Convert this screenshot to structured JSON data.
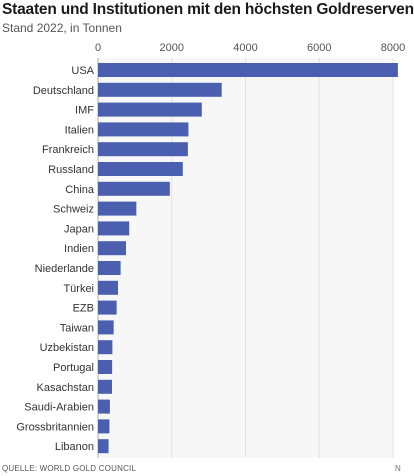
{
  "header": {
    "title": "Staaten und Institutionen mit den höchsten Goldreserven",
    "subtitle": "Stand 2022, in Tonnen"
  },
  "footer": {
    "source": "QUELLE: WORLD GOLD COUNCIL",
    "corner_mark": "N"
  },
  "colors": {
    "bar": "#4a5fb0",
    "grid": "#e3e3e3",
    "baseline": "#b0b0b0",
    "plot_bg": "#f7f7f7"
  },
  "chart_data": {
    "type": "bar",
    "orientation": "horizontal",
    "title": "Staaten und Institutionen mit den höchsten Goldreserven",
    "subtitle": "Stand 2022, in Tonnen",
    "xlim": [
      0,
      8000
    ],
    "xticks": [
      0,
      2000,
      4000,
      6000,
      8000
    ],
    "grid": true,
    "categories": [
      "USA",
      "Deutschland",
      "IMF",
      "Italien",
      "Frankreich",
      "Russland",
      "China",
      "Schweiz",
      "Japan",
      "Indien",
      "Niederlande",
      "Türkei",
      "EZB",
      "Taiwan",
      "Uzbekistan",
      "Portugal",
      "Kasachstan",
      "Saudi-Arabien",
      "Grossbritannien",
      "Libanon"
    ],
    "values": [
      8133,
      3355,
      2814,
      2452,
      2437,
      2299,
      1948,
      1040,
      846,
      760,
      612,
      542,
      505,
      424,
      390,
      383,
      380,
      323,
      310,
      287
    ]
  }
}
